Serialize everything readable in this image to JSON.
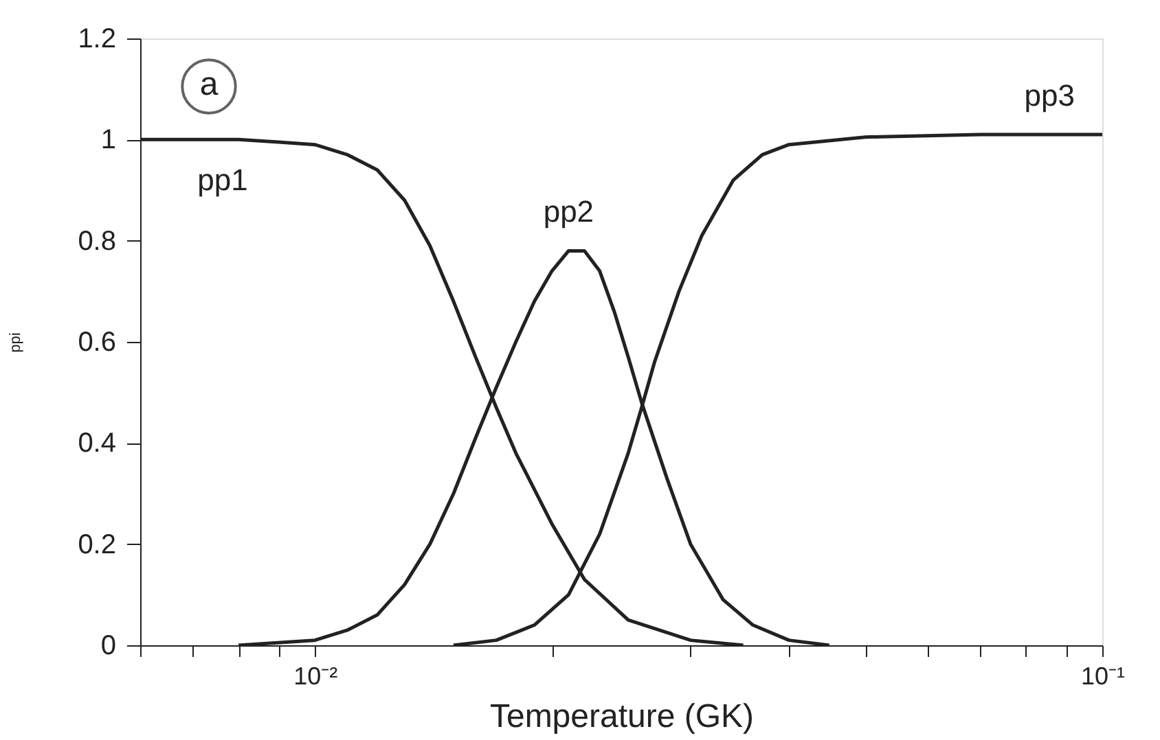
{
  "chart_data": {
    "type": "line",
    "xlabel": "Temperature  (GK)",
    "ylabel": "ppi",
    "log": "x",
    "xlim": [
      0.006,
      0.1
    ],
    "ylim": [
      0,
      1.2
    ],
    "xticks": [
      {
        "value": 0.006,
        "label": null
      },
      {
        "value": 0.007,
        "label": null
      },
      {
        "value": 0.008,
        "label": null
      },
      {
        "value": 0.009,
        "label": null
      },
      {
        "value": 0.01,
        "label": "10⁻²"
      },
      {
        "value": 0.02,
        "label": null
      },
      {
        "value": 0.03,
        "label": null
      },
      {
        "value": 0.04,
        "label": null
      },
      {
        "value": 0.05,
        "label": null
      },
      {
        "value": 0.06,
        "label": null
      },
      {
        "value": 0.07,
        "label": null
      },
      {
        "value": 0.08,
        "label": null
      },
      {
        "value": 0.09,
        "label": null
      },
      {
        "value": 0.1,
        "label": "10⁻¹"
      }
    ],
    "yticks": [
      0,
      0.2,
      0.4,
      0.6,
      0.8,
      1,
      1.2
    ],
    "grid": false,
    "legend": false,
    "marker": "none",
    "line_style": "solid",
    "annotations": [
      "a"
    ],
    "series": [
      {
        "name": "pp1",
        "color": "#222222",
        "x": [
          0.006,
          0.008,
          0.009,
          0.01,
          0.011,
          0.012,
          0.013,
          0.014,
          0.015,
          0.016,
          0.017,
          0.018,
          0.02,
          0.022,
          0.025,
          0.03,
          0.035
        ],
        "values": [
          1,
          1,
          0.995,
          0.99,
          0.97,
          0.94,
          0.88,
          0.79,
          0.68,
          0.57,
          0.47,
          0.38,
          0.24,
          0.13,
          0.05,
          0.01,
          0
        ]
      },
      {
        "name": "pp2",
        "color": "#222222",
        "x": [
          0.008,
          0.01,
          0.011,
          0.012,
          0.013,
          0.014,
          0.015,
          0.016,
          0.017,
          0.018,
          0.019,
          0.02,
          0.021,
          0.022,
          0.023,
          0.024,
          0.025,
          0.026,
          0.028,
          0.03,
          0.033,
          0.036,
          0.04,
          0.045
        ],
        "values": [
          0,
          0.01,
          0.03,
          0.06,
          0.12,
          0.2,
          0.3,
          0.41,
          0.51,
          0.6,
          0.68,
          0.74,
          0.78,
          0.78,
          0.74,
          0.66,
          0.57,
          0.48,
          0.33,
          0.2,
          0.09,
          0.04,
          0.01,
          0
        ]
      },
      {
        "name": "pp3",
        "color": "#222222",
        "x": [
          0.015,
          0.017,
          0.019,
          0.021,
          0.023,
          0.025,
          0.026,
          0.027,
          0.029,
          0.031,
          0.034,
          0.037,
          0.04,
          0.05,
          0.07,
          0.1
        ],
        "values": [
          0,
          0.01,
          0.04,
          0.1,
          0.22,
          0.38,
          0.47,
          0.56,
          0.7,
          0.81,
          0.92,
          0.97,
          0.99,
          1.005,
          1.01,
          1.01
        ]
      }
    ]
  }
}
